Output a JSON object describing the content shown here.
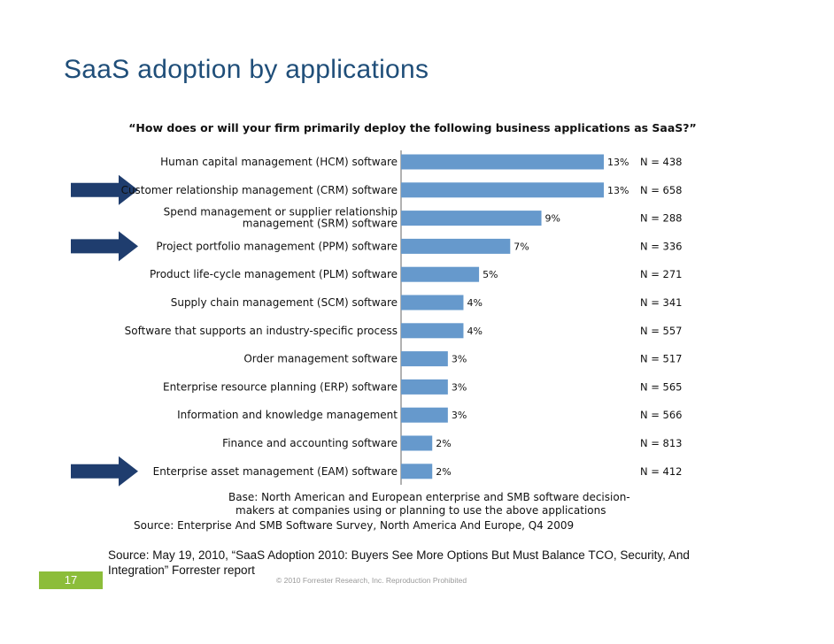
{
  "slide": {
    "title": "SaaS adoption by applications",
    "source_note": "Source: May 19, 2010, “SaaS Adoption 2010: Buyers See More Options But Must Balance TCO, Security, And Integration” Forrester report",
    "page_number": "17",
    "copyright": "© 2010 Forrester Research, Inc. Reproduction Prohibited"
  },
  "colors": {
    "bar": "#6699cc",
    "arrow": "#1f3d6e",
    "title": "#1f4e79",
    "page_box": "#8cbd3a"
  },
  "chart_data": {
    "type": "bar",
    "orientation": "horizontal",
    "title": "“How does or will your firm primarily deploy the following business applications as SaaS?”",
    "categories": [
      "Human capital management (HCM) software",
      "Customer relationship management (CRM) software",
      [
        "Spend management or supplier relationship",
        "management (SRM) software"
      ],
      "Project portfolio management (PPM) software",
      "Product life-cycle management (PLM) software",
      "Supply chain management (SCM) software",
      "Software that supports an industry-specific process",
      "Order management software",
      "Enterprise resource planning (ERP) software",
      "Information and knowledge management",
      "Finance and accounting software",
      "Enterprise asset management (EAM) software"
    ],
    "values": [
      13,
      13,
      9,
      7,
      5,
      4,
      4,
      3,
      3,
      3,
      2,
      2
    ],
    "value_labels": [
      "13%",
      "13%",
      "9%",
      "7%",
      "5%",
      "4%",
      "4%",
      "3%",
      "3%",
      "3%",
      "2%",
      "2%"
    ],
    "n_labels": [
      "N = 438",
      "N = 658",
      "N = 288",
      "N = 336",
      "N = 271",
      "N = 341",
      "N = 557",
      "N = 517",
      "N = 565",
      "N = 566",
      "N = 813",
      "N = 412"
    ],
    "highlighted_categories": [
      1,
      3,
      11
    ],
    "base_note": [
      "Base: North American and European enterprise and SMB software decision-",
      "makers at companies using or planning to use the above applications"
    ],
    "source": "Source: Enterprise And SMB Software Survey, North America And Europe, Q4 2009",
    "xlim": [
      0,
      13
    ],
    "grid": false,
    "legend": "none"
  }
}
